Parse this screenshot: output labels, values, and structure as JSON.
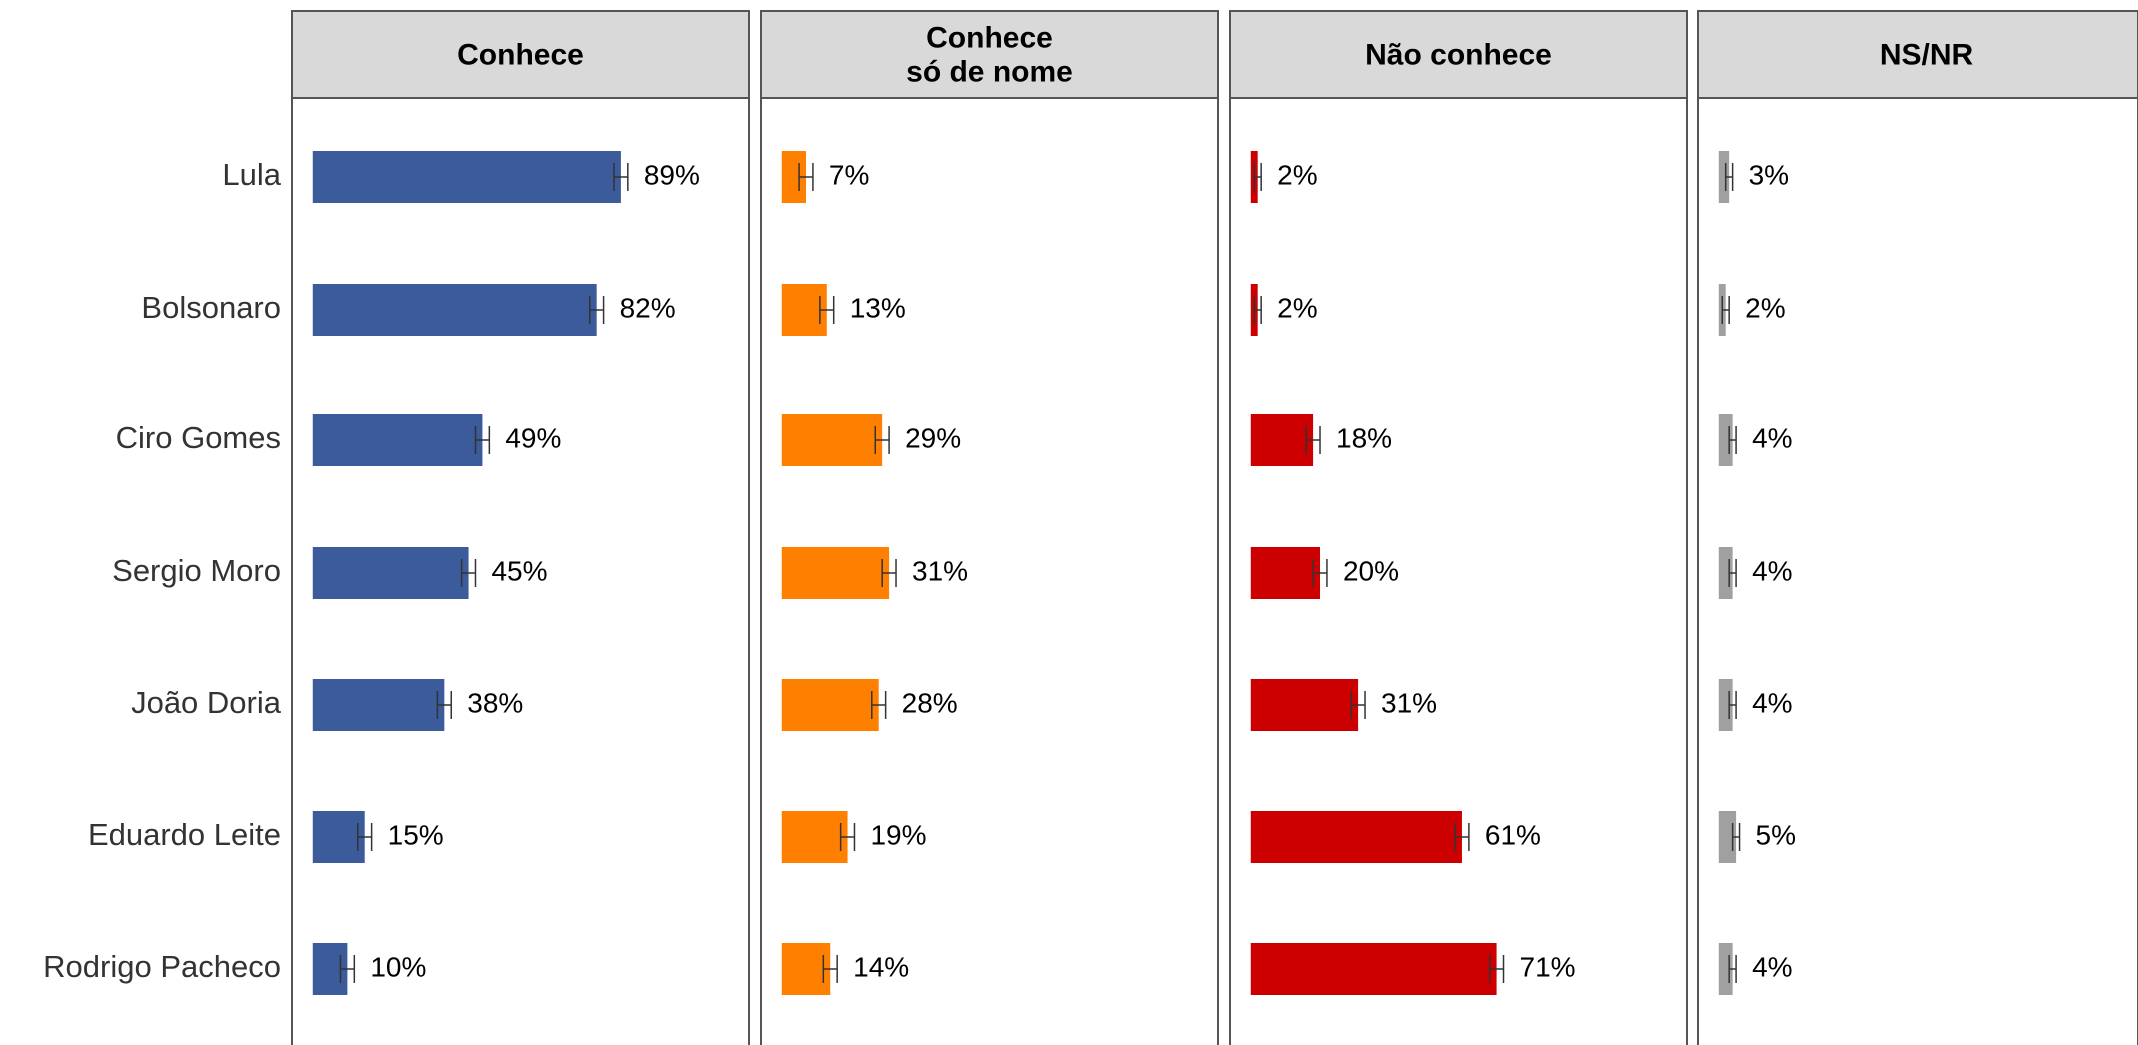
{
  "chart_data": [
    {
      "type": "bar",
      "title": "Conhece",
      "color": "#3b5b9a",
      "categories": [
        "Lula",
        "Bolsonaro",
        "Ciro Gomes",
        "Sergio Moro",
        "João Doria",
        "Eduardo Leite",
        "Rodrigo Pacheco"
      ],
      "values": [
        89,
        82,
        49,
        45,
        38,
        15,
        10
      ],
      "errors": [
        2,
        2,
        2,
        2,
        2,
        2,
        2
      ],
      "value_labels": [
        "89%",
        "82%",
        "49%",
        "45%",
        "38%",
        "15%",
        "10%"
      ],
      "xlim": [
        -6,
        126
      ]
    },
    {
      "type": "bar",
      "title": "Conhece\nsó de nome",
      "color": "#ff7f00",
      "values": [
        7,
        13,
        29,
        31,
        28,
        19,
        14
      ],
      "errors": [
        2,
        2,
        2,
        2,
        2,
        2,
        2
      ],
      "value_labels": [
        "7%",
        "13%",
        "29%",
        "31%",
        "28%",
        "19%",
        "14%"
      ],
      "xlim": [
        -6,
        126
      ]
    },
    {
      "type": "bar",
      "title": "Não conhece",
      "color": "#cc0000",
      "values": [
        2,
        2,
        18,
        20,
        31,
        61,
        71
      ],
      "errors": [
        1,
        1,
        2,
        2,
        2,
        2,
        2
      ],
      "value_labels": [
        "2%",
        "2%",
        "18%",
        "20%",
        "31%",
        "61%",
        "71%"
      ],
      "xlim": [
        -6,
        126
      ]
    },
    {
      "type": "bar",
      "title": "NS/NR",
      "color": "#a0a0a0",
      "values": [
        3,
        2,
        4,
        4,
        4,
        5,
        4
      ],
      "errors": [
        1,
        1,
        1,
        1,
        1,
        1,
        1
      ],
      "value_labels": [
        "3%",
        "2%",
        "4%",
        "4%",
        "4%",
        "5%",
        "4%"
      ],
      "xlim": [
        -6,
        126
      ]
    }
  ]
}
